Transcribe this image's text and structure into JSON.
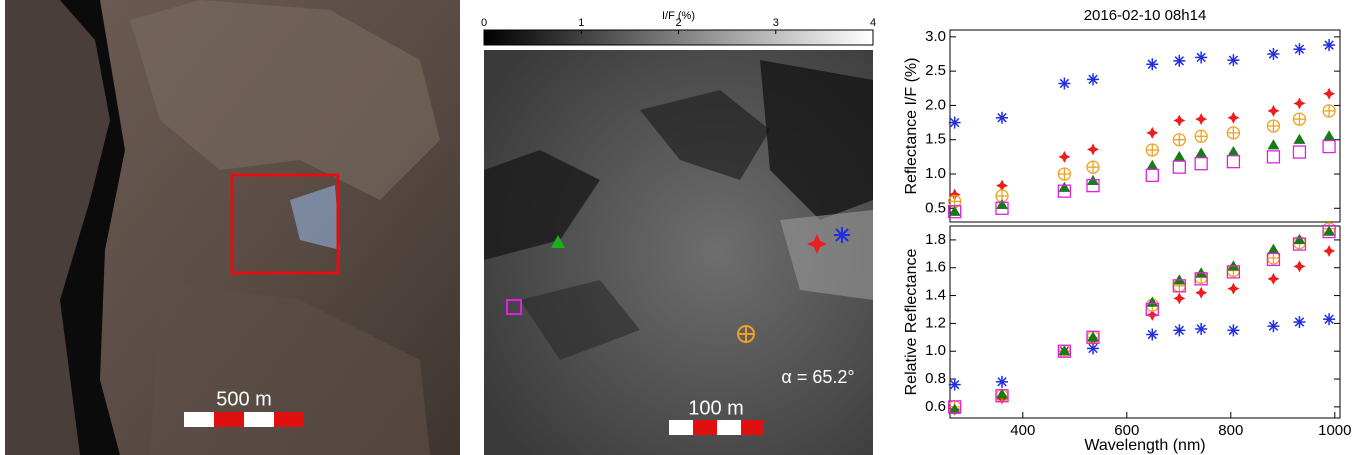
{
  "images": {
    "context_scale": "500 m",
    "zoom_scale": "100 m",
    "phase_angle": "α = 65.2°"
  },
  "chart_data": [
    {
      "type": "colorbar",
      "title": "I/F (%)",
      "xlim": [
        0,
        4
      ],
      "xticks": [
        0,
        1,
        2,
        3,
        4
      ]
    },
    {
      "type": "scatter",
      "title": "2016-02-10 08h14",
      "ylabel": "Reflectance I/F (%)",
      "x": [
        269,
        360,
        480,
        535,
        649,
        701,
        743,
        805,
        882,
        932,
        989
      ],
      "xlim": [
        260,
        1010
      ],
      "ylim": [
        0.3,
        3.1
      ],
      "yticks": [
        0.5,
        {
          "value": 1,
          "label": "1.0"
        },
        1.5,
        {
          "value": 2,
          "label": "2.0"
        },
        2.5,
        {
          "value": 3,
          "label": "3.0"
        }
      ],
      "series": [
        {
          "color": "#1f2ee0",
          "marker": "asterisk",
          "values": [
            1.75,
            1.82,
            2.32,
            2.38,
            2.6,
            2.65,
            2.7,
            2.66,
            2.75,
            2.82,
            2.88
          ]
        },
        {
          "color": "#ee1c1c",
          "marker": "star",
          "values": [
            0.7,
            0.83,
            1.25,
            1.36,
            1.6,
            1.78,
            1.8,
            1.82,
            1.92,
            2.03,
            2.17
          ]
        },
        {
          "color": "#f0a020",
          "marker": "circle-plus",
          "values": [
            0.6,
            0.68,
            1.0,
            1.1,
            1.35,
            1.5,
            1.55,
            1.6,
            1.7,
            1.8,
            1.92
          ]
        },
        {
          "color": "#1a7a1a",
          "marker": "triangle",
          "values": [
            0.45,
            0.55,
            0.8,
            0.9,
            1.12,
            1.25,
            1.3,
            1.32,
            1.42,
            1.5,
            1.55
          ]
        },
        {
          "color": "#e020e0",
          "marker": "square",
          "values": [
            0.45,
            0.5,
            0.75,
            0.83,
            0.98,
            1.1,
            1.15,
            1.18,
            1.25,
            1.32,
            1.4
          ]
        }
      ]
    },
    {
      "type": "scatter",
      "ylabel": "Relative Reflectance",
      "xlabel": "Wavelength (nm)",
      "x": [
        269,
        360,
        480,
        535,
        649,
        701,
        743,
        805,
        882,
        932,
        989
      ],
      "xlim": [
        260,
        1010
      ],
      "xticks": [
        400,
        600,
        800,
        1000
      ],
      "ylim": [
        0.52,
        1.9
      ],
      "yticks": [
        0.6,
        0.8,
        {
          "value": 1,
          "label": "1.0"
        },
        1.2,
        1.4,
        1.6,
        1.8
      ],
      "series": [
        {
          "color": "#1f2ee0",
          "marker": "asterisk",
          "values": [
            0.76,
            0.78,
            1.0,
            1.02,
            1.12,
            1.15,
            1.16,
            1.15,
            1.18,
            1.21,
            1.23
          ]
        },
        {
          "color": "#ee1c1c",
          "marker": "star",
          "values": [
            0.58,
            0.66,
            1.0,
            1.08,
            1.26,
            1.38,
            1.42,
            1.45,
            1.52,
            1.61,
            1.72
          ]
        },
        {
          "color": "#f0a020",
          "marker": "circle-plus",
          "values": [
            0.6,
            0.68,
            1.0,
            1.1,
            1.33,
            1.47,
            1.53,
            1.58,
            1.67,
            1.78,
            1.88
          ]
        },
        {
          "color": "#1a7a1a",
          "marker": "triangle",
          "values": [
            0.58,
            0.69,
            1.0,
            1.1,
            1.35,
            1.51,
            1.56,
            1.61,
            1.73,
            1.8,
            1.86
          ]
        },
        {
          "color": "#e020e0",
          "marker": "square",
          "values": [
            0.6,
            0.68,
            1.0,
            1.1,
            1.3,
            1.47,
            1.52,
            1.57,
            1.66,
            1.77,
            1.86
          ]
        }
      ]
    }
  ]
}
